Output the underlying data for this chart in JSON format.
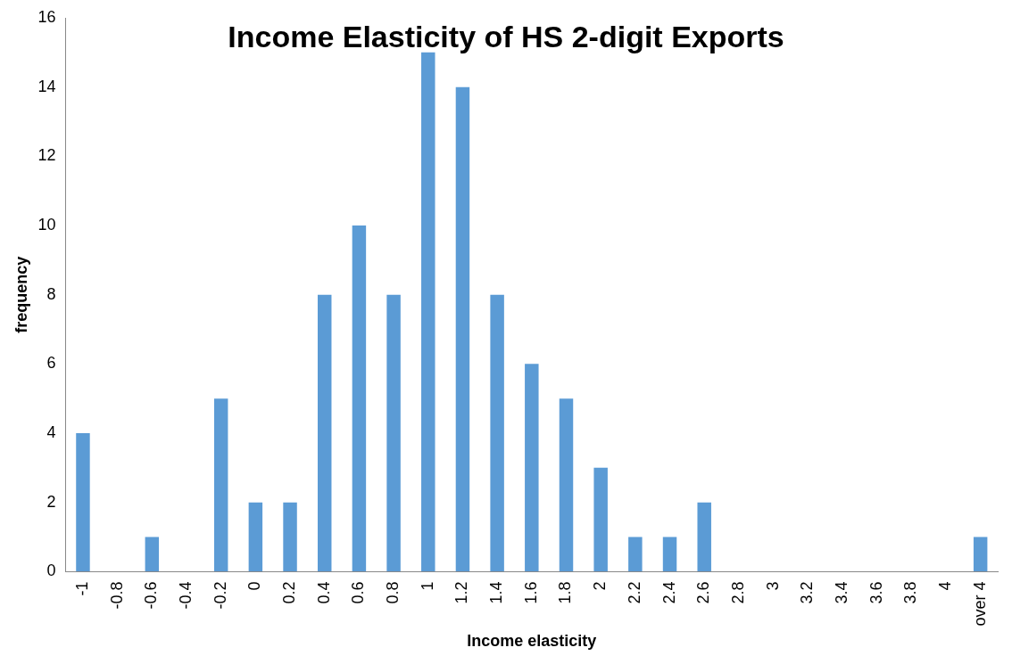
{
  "chart_data": {
    "type": "bar",
    "title": "Income Elasticity of HS 2-digit Exports",
    "xlabel": "Income elasticity",
    "ylabel": "frequency",
    "categories": [
      "-1",
      "-0.8",
      "-0.6",
      "-0.4",
      "-0.2",
      "0",
      "0.2",
      "0.4",
      "0.6",
      "0.8",
      "1",
      "1.2",
      "1.4",
      "1.6",
      "1.8",
      "2",
      "2.2",
      "2.4",
      "2.6",
      "2.8",
      "3",
      "3.2",
      "3.4",
      "3.6",
      "3.8",
      "4",
      "over 4"
    ],
    "values": [
      4,
      0,
      1,
      0,
      5,
      2,
      2,
      8,
      10,
      8,
      15,
      14,
      8,
      6,
      5,
      3,
      1,
      1,
      2,
      0,
      0,
      0,
      0,
      0,
      0,
      0,
      1
    ],
    "color": "#5b9bd5",
    "ylim": [
      0,
      16
    ],
    "yticks": [
      0,
      2,
      4,
      6,
      8,
      10,
      12,
      14,
      16
    ],
    "grid": false,
    "legend": false
  }
}
